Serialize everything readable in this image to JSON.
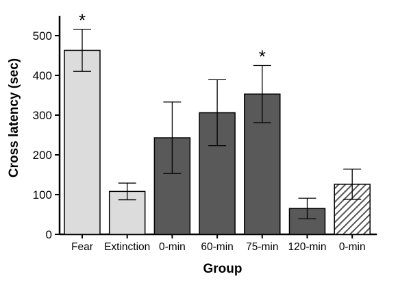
{
  "chart_data": {
    "type": "bar",
    "title": "",
    "xlabel": "Group",
    "ylabel": "Cross latency (sec)",
    "ylim": [
      0,
      550
    ],
    "yticks": [
      0,
      100,
      200,
      300,
      400,
      500
    ],
    "grid": false,
    "legend": "none",
    "categories": [
      "Fear",
      "Extinction",
      "0-min",
      "60-min",
      "75-min",
      "120-min",
      "0-min"
    ],
    "values": [
      463,
      108,
      243,
      306,
      353,
      65,
      126
    ],
    "errors": [
      53,
      21,
      90,
      83,
      72,
      26,
      38
    ],
    "fills": [
      "light",
      "light",
      "dark",
      "dark",
      "dark",
      "dark",
      "hatched"
    ],
    "annotations": [
      "*",
      "",
      "",
      "",
      "*",
      "",
      ""
    ],
    "colors": {
      "light": "#dcdcdc",
      "dark": "#595959",
      "hatch_line": "#555555",
      "hatch_bg": "#ffffff"
    }
  }
}
